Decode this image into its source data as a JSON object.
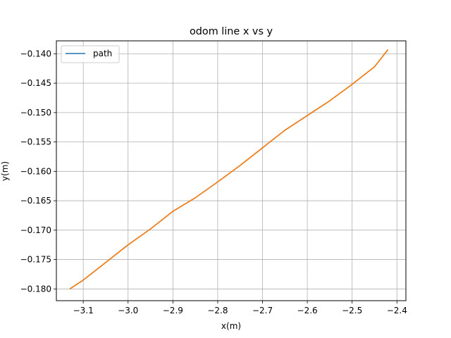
{
  "chart_data": {
    "type": "line",
    "title": "odom line x vs y",
    "xlabel": "x(m)",
    "ylabel": "y(m)",
    "xlim": [
      -3.16,
      -2.38
    ],
    "ylim": [
      -0.182,
      -0.1378
    ],
    "xticks": [
      -3.1,
      -3.0,
      -2.9,
      -2.8,
      -2.7,
      -2.6,
      -2.5,
      -2.4
    ],
    "xtick_labels": [
      "−3.1",
      "−3.0",
      "−2.9",
      "−2.8",
      "−2.7",
      "−2.6",
      "−2.5",
      "−2.4"
    ],
    "yticks": [
      -0.18,
      -0.175,
      -0.17,
      -0.165,
      -0.16,
      -0.155,
      -0.15,
      -0.145,
      -0.14
    ],
    "ytick_labels": [
      "−0.180",
      "−0.175",
      "−0.170",
      "−0.165",
      "−0.160",
      "−0.155",
      "−0.150",
      "−0.145",
      "−0.140"
    ],
    "grid": true,
    "legend": {
      "position": "top-left",
      "entries": [
        "path"
      ]
    },
    "series": [
      {
        "name": "path",
        "color": "#1f77b4",
        "x": [
          -3.13,
          -3.1,
          -3.05,
          -3.0,
          -2.95,
          -2.9,
          -2.85,
          -2.8,
          -2.75,
          -2.7,
          -2.65,
          -2.6,
          -2.55,
          -2.5,
          -2.45,
          -2.42
        ],
        "y": [
          -0.18,
          -0.1785,
          -0.1755,
          -0.1725,
          -0.1698,
          -0.1668,
          -0.1645,
          -0.1618,
          -0.159,
          -0.156,
          -0.153,
          -0.1505,
          -0.148,
          -0.1452,
          -0.1422,
          -0.1393
        ]
      },
      {
        "color": "#ff7f0e",
        "x": [
          -3.13,
          -3.1,
          -3.05,
          -3.0,
          -2.95,
          -2.9,
          -2.85,
          -2.8,
          -2.75,
          -2.7,
          -2.65,
          -2.6,
          -2.55,
          -2.5,
          -2.45,
          -2.42
        ],
        "y": [
          -0.18,
          -0.1785,
          -0.1755,
          -0.1725,
          -0.1698,
          -0.1668,
          -0.1645,
          -0.1618,
          -0.159,
          -0.156,
          -0.153,
          -0.1505,
          -0.148,
          -0.1452,
          -0.1422,
          -0.1393
        ]
      }
    ]
  }
}
